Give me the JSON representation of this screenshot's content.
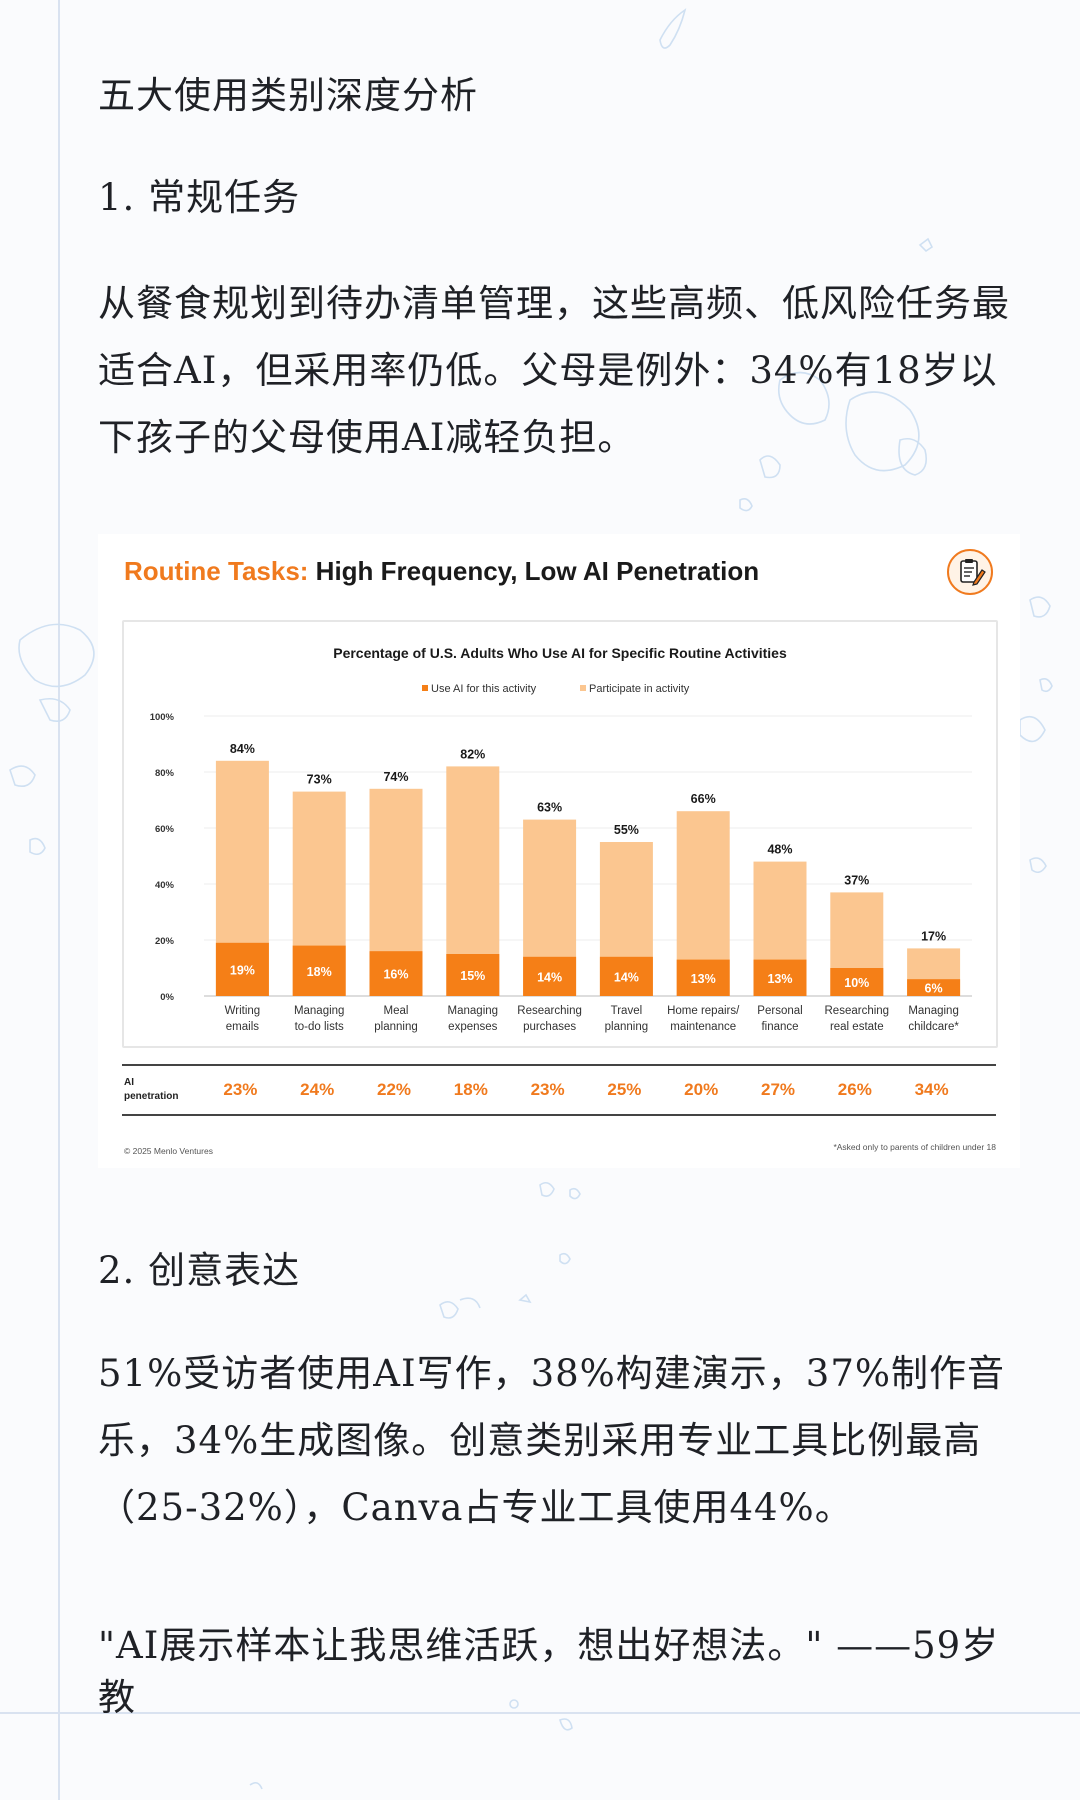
{
  "article": {
    "heading": "五大使用类别深度分析",
    "section1_title": "1. 常规任务",
    "section1_body_lines": [
      "从餐食规划到待办清单管理，这些高频、低风险任务最",
      "适合AI，但采用率仍低。父母是例外：34%有18岁以",
      "下孩子的父母使用AI减轻负担。"
    ],
    "section2_title": "2. 创意表达",
    "section2_body_lines": [
      "51%受访者使用AI写作，38%构建演示，37%制作音",
      "乐，34%生成图像。创意类别采用专业工具比例最高",
      "（25-32%），Canva占专业工具使用44%。"
    ],
    "quote": "\"AI展示样本让我思维活跃，想出好想法。\" ——59岁教"
  },
  "card": {
    "title_accent": "Routine Tasks:",
    "title_rest": " High Frequency, Low AI Penetration",
    "icon": "clipboard-pencil-icon",
    "penetration_label_line1": "AI",
    "penetration_label_line2": "penetration",
    "footer_left": "© 2025 Menlo Ventures",
    "footer_right": "*Asked only to parents of children under 18"
  },
  "colors": {
    "accent": "#f07a1e",
    "participate": "#fbc690",
    "use_ai": "#f57f17"
  },
  "chart_data": {
    "type": "bar",
    "stacked": "overlay",
    "title": "Percentage of U.S. Adults Who Use AI for Specific Routine Activities",
    "categories": [
      [
        "Writing",
        "emails"
      ],
      [
        "Managing",
        "to-do lists"
      ],
      [
        "Meal",
        "planning"
      ],
      [
        "Managing",
        "expenses"
      ],
      [
        "Researching",
        "purchases"
      ],
      [
        "Travel",
        "planning"
      ],
      [
        "Home repairs/",
        "maintenance"
      ],
      [
        "Personal",
        "finance"
      ],
      [
        "Researching",
        "real estate"
      ],
      [
        "Managing",
        "childcare*"
      ]
    ],
    "series": [
      {
        "name": "Participate in activity",
        "values": [
          84,
          73,
          74,
          82,
          63,
          55,
          66,
          48,
          37,
          17
        ]
      },
      {
        "name": "Use AI for this activity",
        "values": [
          19,
          18,
          16,
          15,
          14,
          14,
          13,
          13,
          10,
          6
        ]
      }
    ],
    "ylim": [
      0,
      100
    ],
    "yticks": [
      "0%",
      "20%",
      "40%",
      "60%",
      "80%",
      "100%"
    ],
    "ytick_values": [
      0,
      20,
      40,
      60,
      80,
      100
    ],
    "grid": true,
    "legend_position": "top-center",
    "ai_penetration": [
      "23%",
      "24%",
      "22%",
      "18%",
      "23%",
      "25%",
      "20%",
      "27%",
      "26%",
      "34%"
    ]
  }
}
